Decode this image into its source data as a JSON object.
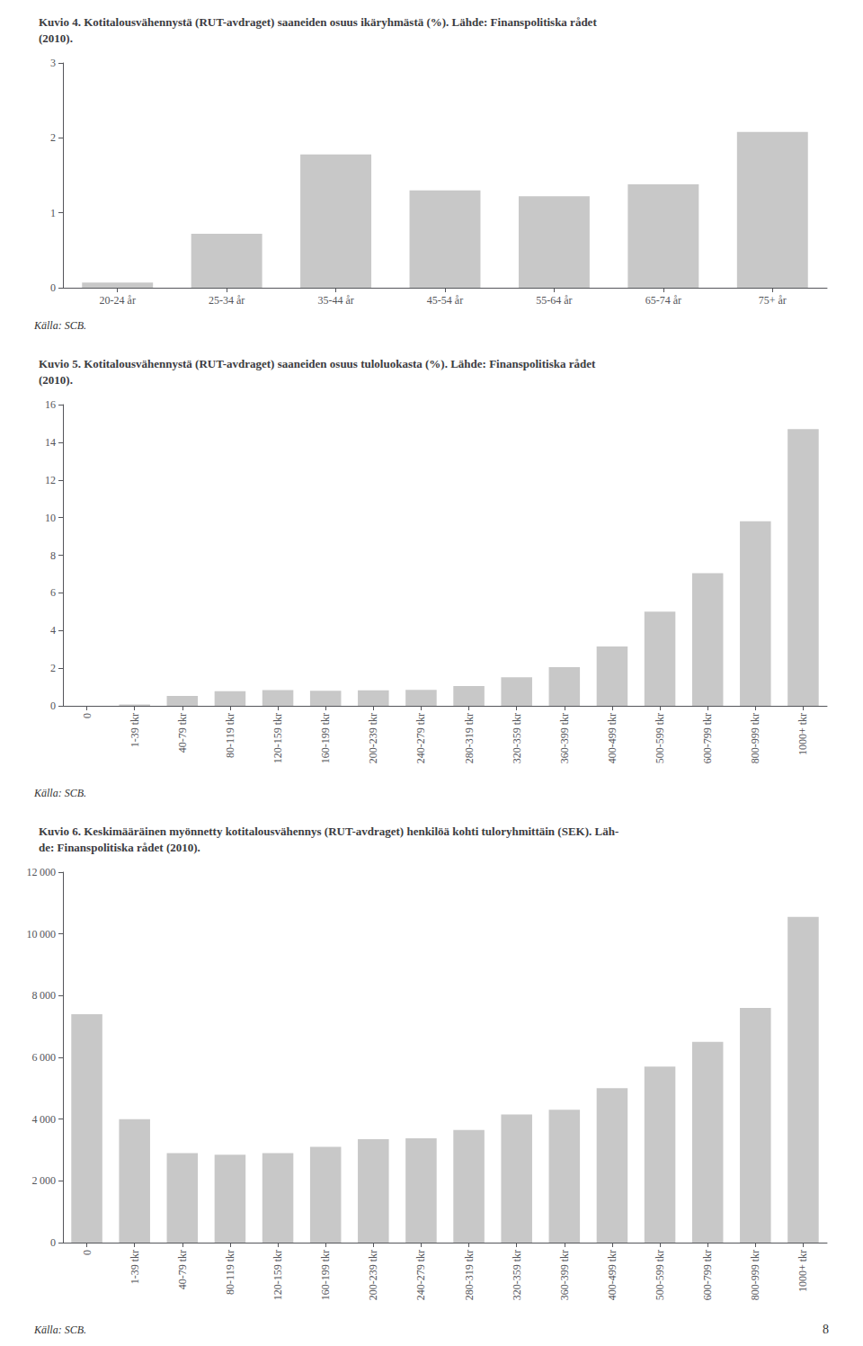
{
  "chart_data": [
    {
      "type": "bar",
      "title": "Kuvio 4. Kotitalousvähennystä (RUT-avdraget) saaneiden osuus ikäryhmästä (%). Lähde: Finanspolitiska rådet\n(2010).",
      "categories": [
        "20-24 år",
        "25-34 år",
        "35-44 år",
        "45-54 år",
        "55-64 år",
        "65-74 år",
        "75+ år"
      ],
      "values": [
        0.07,
        0.72,
        1.78,
        1.3,
        1.22,
        1.38,
        2.08
      ],
      "color": "#c8c8c8",
      "ylim": [
        0,
        3
      ],
      "yticks": [
        0,
        1,
        2,
        3
      ],
      "grid": false,
      "annotations": [
        "Källa: SCB."
      ]
    },
    {
      "type": "bar",
      "title": "Kuvio 5. Kotitalousvähennystä (RUT-avdraget) saaneiden osuus tuloluokasta (%). Lähde: Finanspolitiska rådet\n(2010).",
      "categories": [
        "0",
        "1-39 tkr",
        "40-79 tkr",
        "80-119 tkr",
        "120-159 tkr",
        "160-199 tkr",
        "200-239 tkr",
        "240-279 tkr",
        "280-319 tkr",
        "320-359 tkr",
        "360-399 tkr",
        "400-499 tkr",
        "500-599 tkr",
        "600-799 tkr",
        "800-999 tkr",
        "1000+ tkr"
      ],
      "values": [
        0.0,
        0.07,
        0.52,
        0.78,
        0.83,
        0.8,
        0.82,
        0.85,
        1.05,
        1.52,
        2.05,
        3.15,
        5.0,
        7.05,
        9.8,
        14.7
      ],
      "color": "#c8c8c8",
      "ylim": [
        0,
        16
      ],
      "yticks": [
        0,
        2,
        4,
        6,
        8,
        10,
        12,
        14,
        16
      ],
      "grid": false,
      "annotations": [
        "Källa: SCB."
      ]
    },
    {
      "type": "bar",
      "title": "Kuvio 6. Keskimääräinen myönnetty kotitalousvähennys (RUT-avdraget) henkilöä kohti tuloryhmittäin (SEK). Läh-\nde: Finanspolitiska rådet (2010).",
      "categories": [
        "0",
        "1-39 tkr",
        "40-79 tkr",
        "80-119 tkr",
        "120-159 tkr",
        "160-199 tkr",
        "200-239 tkr",
        "240-279 tkr",
        "280-319 tkr",
        "320-359 tkr",
        "360-399 tkr",
        "400-499 tkr",
        "500-599 tkr",
        "600-799 tkr",
        "800-999 tkr",
        "1000+ tkr"
      ],
      "values": [
        7400,
        4000,
        2900,
        2850,
        2900,
        3100,
        3350,
        3380,
        3650,
        4150,
        4300,
        5000,
        5700,
        6500,
        7600,
        10550
      ],
      "color": "#c8c8c8",
      "ylim": [
        0,
        12000
      ],
      "yticks": [
        0,
        {
          "value": 2000,
          "label": "2 000"
        },
        {
          "value": 4000,
          "label": "4 000"
        },
        {
          "value": 6000,
          "label": "6 000"
        },
        {
          "value": 8000,
          "label": "8 000"
        },
        {
          "value": 10000,
          "label": "10 000"
        },
        {
          "value": 12000,
          "label": "12 000"
        }
      ],
      "grid": false,
      "annotations": [
        "Källa: SCB.",
        "8"
      ]
    }
  ]
}
